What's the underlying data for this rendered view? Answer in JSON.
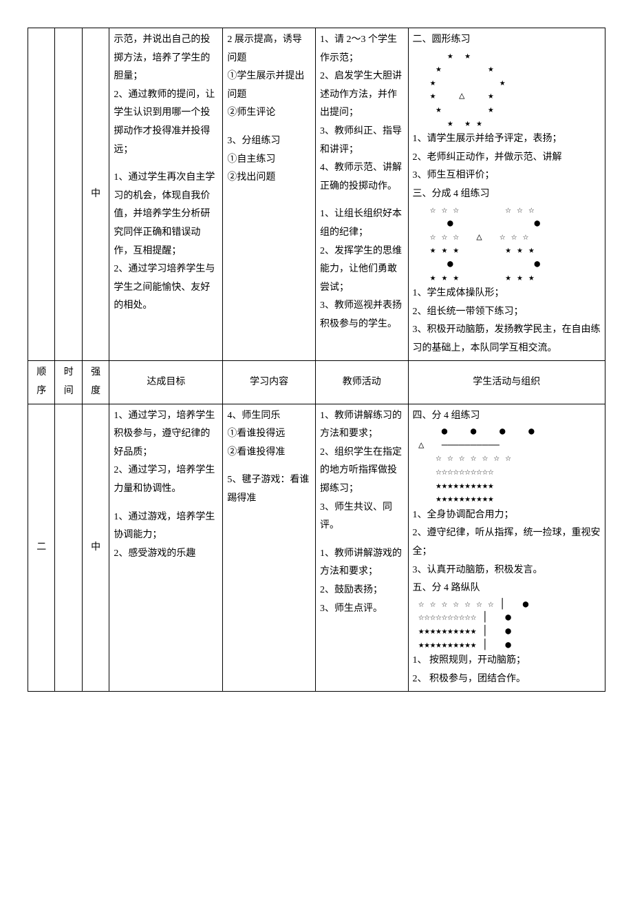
{
  "row1": {
    "intensity": "中",
    "goal_a": "示范，并说出自己的投掷方法，培养了学生的胆量；\n2、通过教师的提问，让学生认识到用哪一个投掷动作才投得准并投得远；",
    "goal_b": "1、通过学生再次自主学习的机会，体现自我价值，并培养学生分析研究同伴正确和错误动作，互相提醒；\n2、通过学习培养学生与学生之间能愉快、友好的相处。",
    "content_a": "2 展示提高，诱导问题\n①学生展示并提出问题\n②师生评论",
    "content_b": "3、分组练习\n①自主练习\n②找出问题",
    "teacher_a": "1、请 2～3 个学生作示范；\n2、启发学生大胆讲述动作方法，并作出提问；\n3、教师纠正、指导和讲评；\n4、教师示范、讲解正确的投掷动作。",
    "teacher_b": "1、让组长组织好本组的纪律；\n2、发挥学生的思维能力，让他们勇敢尝试；\n3、教师巡视并表扬积极参与的学生。",
    "student_heading2": "二、圆形练习",
    "student_a1": "1、请学生展示并给予评定，表扬；",
    "student_a2": "2、老师纠正动作，并做示范、讲解",
    "student_a3": "3、师生互相评价；",
    "student_heading3": "三、分成 4 组练习",
    "student_b1": "1、学生成体操队形；",
    "student_b2": "2、组长统一带领下练习；",
    "student_b3": "3、积极开动脑筋，发扬教学民主，在自由练习的基础上，本队同学互相交流。"
  },
  "headers": {
    "seq": "顺序",
    "time": "时间",
    "intensity": "强度",
    "goal": "达成目标",
    "content": "学习内容",
    "teacher": "教师活动",
    "student": "学生活动与组织"
  },
  "row2": {
    "seq": "二",
    "intensity": "中",
    "goal_a": "1、通过学习，培养学生积极参与，遵守纪律的好品质；\n2、通过学习，培养学生力量和协调性。",
    "goal_b": "1、通过游戏，培养学生协调能力；\n2、感受游戏的乐趣",
    "content_a": "4、师生同乐\n①看谁投得远\n②看谁投得准",
    "content_b": "5、毽子游戏：看谁踢得准",
    "teacher_a": "1、教师讲解练习的方法和要求；\n2、组织学生在指定的地方听指挥做投掷练习；\n3、师生共议、同评。",
    "teacher_b": "1、教师讲解游戏的方法和要求；\n2、鼓励表扬；\n3、师生点评。",
    "student_heading4": "四、分 4 组练习",
    "student_c1": "1、全身协调配合用力；",
    "student_c2": "2、遵守纪律，听从指挥，统一捡球，重视安全；",
    "student_c3": "3、认真开动脑筋，积极发言。",
    "student_heading5": "五、分 4 路纵队",
    "student_d1": "1、 按照规则，开动脑筋；",
    "student_d2": "2、 积极参与，团结合作。"
  },
  "symbols": {
    "solid_star": "★",
    "outline_star": "☆",
    "triangle": "△",
    "dot": "●",
    "bar": "│",
    "dash_line": "——————————"
  }
}
